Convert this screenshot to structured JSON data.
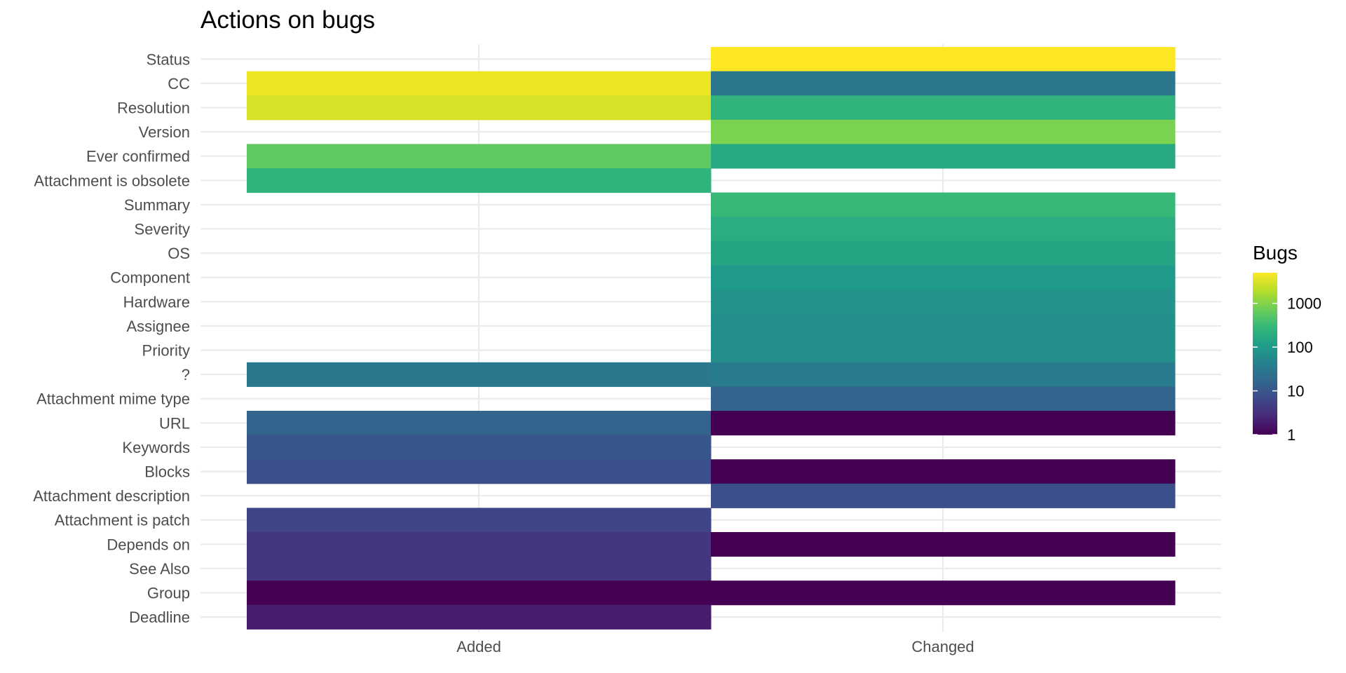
{
  "chart_data": {
    "type": "heatmap",
    "title": "Actions on bugs",
    "xlabel": "",
    "ylabel": "",
    "x_categories": [
      "Added",
      "Changed"
    ],
    "y_categories": [
      "Status",
      "CC",
      "Resolution",
      "Version",
      "Ever confirmed",
      "Attachment is obsolete",
      "Summary",
      "Severity",
      "OS",
      "Component",
      "Hardware",
      "Assignee",
      "Priority",
      "?",
      "Attachment mime type",
      "URL",
      "Keywords",
      "Blocks",
      "Attachment description",
      "Attachment is patch",
      "Depends on",
      "See Also",
      "Group",
      "Deadline"
    ],
    "cells": [
      {
        "x": "Changed",
        "y": "Status",
        "value": 5000
      },
      {
        "x": "Added",
        "y": "CC",
        "value": 4000
      },
      {
        "x": "Changed",
        "y": "CC",
        "value": 30
      },
      {
        "x": "Added",
        "y": "Resolution",
        "value": 3000
      },
      {
        "x": "Changed",
        "y": "Resolution",
        "value": 250
      },
      {
        "x": "Changed",
        "y": "Version",
        "value": 900
      },
      {
        "x": "Added",
        "y": "Ever confirmed",
        "value": 600
      },
      {
        "x": "Changed",
        "y": "Ever confirmed",
        "value": 170
      },
      {
        "x": "Added",
        "y": "Attachment is obsolete",
        "value": 250
      },
      {
        "x": "Changed",
        "y": "Summary",
        "value": 300
      },
      {
        "x": "Changed",
        "y": "Severity",
        "value": 200
      },
      {
        "x": "Changed",
        "y": "OS",
        "value": 150
      },
      {
        "x": "Changed",
        "y": "Component",
        "value": 100
      },
      {
        "x": "Changed",
        "y": "Hardware",
        "value": 80
      },
      {
        "x": "Changed",
        "y": "Assignee",
        "value": 70
      },
      {
        "x": "Changed",
        "y": "Priority",
        "value": 70
      },
      {
        "x": "Added",
        "y": "?",
        "value": 30
      },
      {
        "x": "Changed",
        "y": "?",
        "value": 35
      },
      {
        "x": "Changed",
        "y": "Attachment mime type",
        "value": 15
      },
      {
        "x": "Added",
        "y": "URL",
        "value": 15
      },
      {
        "x": "Changed",
        "y": "URL",
        "value": 1
      },
      {
        "x": "Added",
        "y": "Keywords",
        "value": 10
      },
      {
        "x": "Added",
        "y": "Blocks",
        "value": 8
      },
      {
        "x": "Changed",
        "y": "Blocks",
        "value": 1
      },
      {
        "x": "Changed",
        "y": "Attachment description",
        "value": 8
      },
      {
        "x": "Added",
        "y": "Attachment is patch",
        "value": 6
      },
      {
        "x": "Added",
        "y": "Depends on",
        "value": 4
      },
      {
        "x": "Changed",
        "y": "Depends on",
        "value": 1
      },
      {
        "x": "Added",
        "y": "See Also",
        "value": 4
      },
      {
        "x": "Added",
        "y": "Group",
        "value": 1
      },
      {
        "x": "Changed",
        "y": "Group",
        "value": 1
      },
      {
        "x": "Added",
        "y": "Deadline",
        "value": 2
      }
    ],
    "color_scale": {
      "type": "log10",
      "palette": "viridis",
      "domain": [
        1,
        5000
      ],
      "stops": [
        "#440154",
        "#482878",
        "#3e4989",
        "#31688e",
        "#26828e",
        "#1f9e89",
        "#35b779",
        "#6ece58",
        "#b5de2b",
        "#fde725"
      ]
    },
    "legend": {
      "title": "Bugs",
      "ticks": [
        "1",
        "10",
        "100",
        "1000"
      ],
      "tick_values": [
        1,
        10,
        100,
        1000
      ],
      "position": "right"
    },
    "grid": true
  }
}
